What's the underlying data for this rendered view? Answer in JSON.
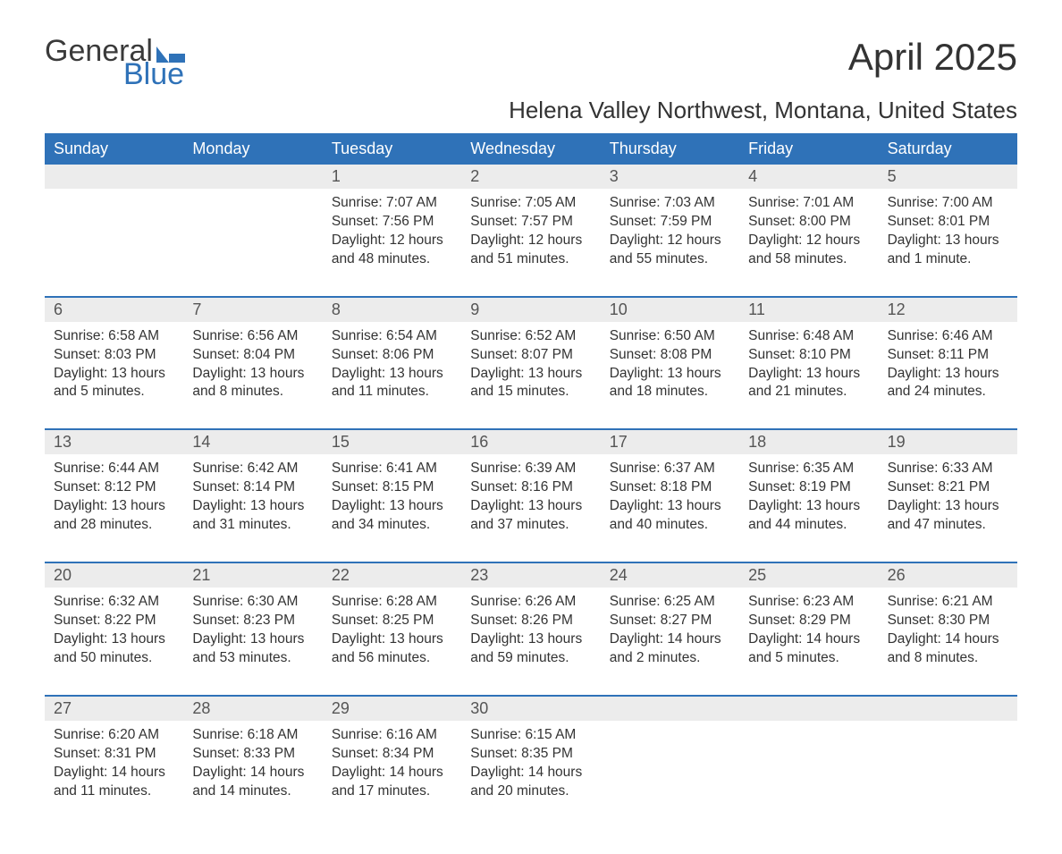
{
  "logo": {
    "text1": "General",
    "text2": "Blue"
  },
  "title": "April 2025",
  "location": "Helena Valley Northwest, Montana, United States",
  "colors": {
    "header_bg": "#2f72b8",
    "header_text": "#ffffff",
    "daynum_bg": "#ececec",
    "border": "#2f72b8",
    "text": "#333333",
    "logo_blue": "#2f72b8"
  },
  "day_names": [
    "Sunday",
    "Monday",
    "Tuesday",
    "Wednesday",
    "Thursday",
    "Friday",
    "Saturday"
  ],
  "weeks": [
    [
      {
        "d": "",
        "sr": "",
        "ss": "",
        "dl1": "",
        "dl2": ""
      },
      {
        "d": "",
        "sr": "",
        "ss": "",
        "dl1": "",
        "dl2": ""
      },
      {
        "d": "1",
        "sr": "Sunrise: 7:07 AM",
        "ss": "Sunset: 7:56 PM",
        "dl1": "Daylight: 12 hours",
        "dl2": "and 48 minutes."
      },
      {
        "d": "2",
        "sr": "Sunrise: 7:05 AM",
        "ss": "Sunset: 7:57 PM",
        "dl1": "Daylight: 12 hours",
        "dl2": "and 51 minutes."
      },
      {
        "d": "3",
        "sr": "Sunrise: 7:03 AM",
        "ss": "Sunset: 7:59 PM",
        "dl1": "Daylight: 12 hours",
        "dl2": "and 55 minutes."
      },
      {
        "d": "4",
        "sr": "Sunrise: 7:01 AM",
        "ss": "Sunset: 8:00 PM",
        "dl1": "Daylight: 12 hours",
        "dl2": "and 58 minutes."
      },
      {
        "d": "5",
        "sr": "Sunrise: 7:00 AM",
        "ss": "Sunset: 8:01 PM",
        "dl1": "Daylight: 13 hours",
        "dl2": "and 1 minute."
      }
    ],
    [
      {
        "d": "6",
        "sr": "Sunrise: 6:58 AM",
        "ss": "Sunset: 8:03 PM",
        "dl1": "Daylight: 13 hours",
        "dl2": "and 5 minutes."
      },
      {
        "d": "7",
        "sr": "Sunrise: 6:56 AM",
        "ss": "Sunset: 8:04 PM",
        "dl1": "Daylight: 13 hours",
        "dl2": "and 8 minutes."
      },
      {
        "d": "8",
        "sr": "Sunrise: 6:54 AM",
        "ss": "Sunset: 8:06 PM",
        "dl1": "Daylight: 13 hours",
        "dl2": "and 11 minutes."
      },
      {
        "d": "9",
        "sr": "Sunrise: 6:52 AM",
        "ss": "Sunset: 8:07 PM",
        "dl1": "Daylight: 13 hours",
        "dl2": "and 15 minutes."
      },
      {
        "d": "10",
        "sr": "Sunrise: 6:50 AM",
        "ss": "Sunset: 8:08 PM",
        "dl1": "Daylight: 13 hours",
        "dl2": "and 18 minutes."
      },
      {
        "d": "11",
        "sr": "Sunrise: 6:48 AM",
        "ss": "Sunset: 8:10 PM",
        "dl1": "Daylight: 13 hours",
        "dl2": "and 21 minutes."
      },
      {
        "d": "12",
        "sr": "Sunrise: 6:46 AM",
        "ss": "Sunset: 8:11 PM",
        "dl1": "Daylight: 13 hours",
        "dl2": "and 24 minutes."
      }
    ],
    [
      {
        "d": "13",
        "sr": "Sunrise: 6:44 AM",
        "ss": "Sunset: 8:12 PM",
        "dl1": "Daylight: 13 hours",
        "dl2": "and 28 minutes."
      },
      {
        "d": "14",
        "sr": "Sunrise: 6:42 AM",
        "ss": "Sunset: 8:14 PM",
        "dl1": "Daylight: 13 hours",
        "dl2": "and 31 minutes."
      },
      {
        "d": "15",
        "sr": "Sunrise: 6:41 AM",
        "ss": "Sunset: 8:15 PM",
        "dl1": "Daylight: 13 hours",
        "dl2": "and 34 minutes."
      },
      {
        "d": "16",
        "sr": "Sunrise: 6:39 AM",
        "ss": "Sunset: 8:16 PM",
        "dl1": "Daylight: 13 hours",
        "dl2": "and 37 minutes."
      },
      {
        "d": "17",
        "sr": "Sunrise: 6:37 AM",
        "ss": "Sunset: 8:18 PM",
        "dl1": "Daylight: 13 hours",
        "dl2": "and 40 minutes."
      },
      {
        "d": "18",
        "sr": "Sunrise: 6:35 AM",
        "ss": "Sunset: 8:19 PM",
        "dl1": "Daylight: 13 hours",
        "dl2": "and 44 minutes."
      },
      {
        "d": "19",
        "sr": "Sunrise: 6:33 AM",
        "ss": "Sunset: 8:21 PM",
        "dl1": "Daylight: 13 hours",
        "dl2": "and 47 minutes."
      }
    ],
    [
      {
        "d": "20",
        "sr": "Sunrise: 6:32 AM",
        "ss": "Sunset: 8:22 PM",
        "dl1": "Daylight: 13 hours",
        "dl2": "and 50 minutes."
      },
      {
        "d": "21",
        "sr": "Sunrise: 6:30 AM",
        "ss": "Sunset: 8:23 PM",
        "dl1": "Daylight: 13 hours",
        "dl2": "and 53 minutes."
      },
      {
        "d": "22",
        "sr": "Sunrise: 6:28 AM",
        "ss": "Sunset: 8:25 PM",
        "dl1": "Daylight: 13 hours",
        "dl2": "and 56 minutes."
      },
      {
        "d": "23",
        "sr": "Sunrise: 6:26 AM",
        "ss": "Sunset: 8:26 PM",
        "dl1": "Daylight: 13 hours",
        "dl2": "and 59 minutes."
      },
      {
        "d": "24",
        "sr": "Sunrise: 6:25 AM",
        "ss": "Sunset: 8:27 PM",
        "dl1": "Daylight: 14 hours",
        "dl2": "and 2 minutes."
      },
      {
        "d": "25",
        "sr": "Sunrise: 6:23 AM",
        "ss": "Sunset: 8:29 PM",
        "dl1": "Daylight: 14 hours",
        "dl2": "and 5 minutes."
      },
      {
        "d": "26",
        "sr": "Sunrise: 6:21 AM",
        "ss": "Sunset: 8:30 PM",
        "dl1": "Daylight: 14 hours",
        "dl2": "and 8 minutes."
      }
    ],
    [
      {
        "d": "27",
        "sr": "Sunrise: 6:20 AM",
        "ss": "Sunset: 8:31 PM",
        "dl1": "Daylight: 14 hours",
        "dl2": "and 11 minutes."
      },
      {
        "d": "28",
        "sr": "Sunrise: 6:18 AM",
        "ss": "Sunset: 8:33 PM",
        "dl1": "Daylight: 14 hours",
        "dl2": "and 14 minutes."
      },
      {
        "d": "29",
        "sr": "Sunrise: 6:16 AM",
        "ss": "Sunset: 8:34 PM",
        "dl1": "Daylight: 14 hours",
        "dl2": "and 17 minutes."
      },
      {
        "d": "30",
        "sr": "Sunrise: 6:15 AM",
        "ss": "Sunset: 8:35 PM",
        "dl1": "Daylight: 14 hours",
        "dl2": "and 20 minutes."
      },
      {
        "d": "",
        "sr": "",
        "ss": "",
        "dl1": "",
        "dl2": ""
      },
      {
        "d": "",
        "sr": "",
        "ss": "",
        "dl1": "",
        "dl2": ""
      },
      {
        "d": "",
        "sr": "",
        "ss": "",
        "dl1": "",
        "dl2": ""
      }
    ]
  ]
}
